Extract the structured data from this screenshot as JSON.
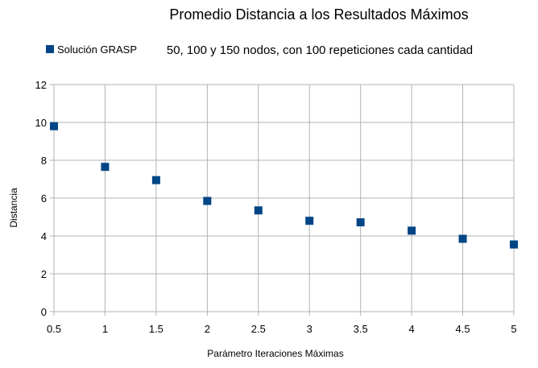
{
  "chart_data": {
    "type": "scatter",
    "title": "Promedio Distancia a los Resultados Máximos",
    "subtitle": "50, 100 y 150 nodos, con 100 repeticiones cada cantidad",
    "xlabel": "Parámetro Iteraciones Máximas",
    "ylabel": "Distancia",
    "xlim": [
      0.5,
      5
    ],
    "ylim": [
      0,
      12
    ],
    "x_ticks": [
      "0.5",
      "1",
      "1.5",
      "2",
      "2.5",
      "3",
      "3.5",
      "4",
      "4.5",
      "5"
    ],
    "y_ticks": [
      "0",
      "2",
      "4",
      "6",
      "8",
      "10",
      "12"
    ],
    "grid": true,
    "legend_position": "top-left",
    "series": [
      {
        "name": "Solución GRASP",
        "color": "#004586",
        "marker": "square",
        "x": [
          0.5,
          1,
          1.5,
          2,
          2.5,
          3,
          3.5,
          4,
          4.5,
          5
        ],
        "y": [
          9.8,
          7.65,
          6.95,
          5.85,
          5.35,
          4.8,
          4.72,
          4.28,
          3.85,
          3.55
        ]
      }
    ]
  }
}
